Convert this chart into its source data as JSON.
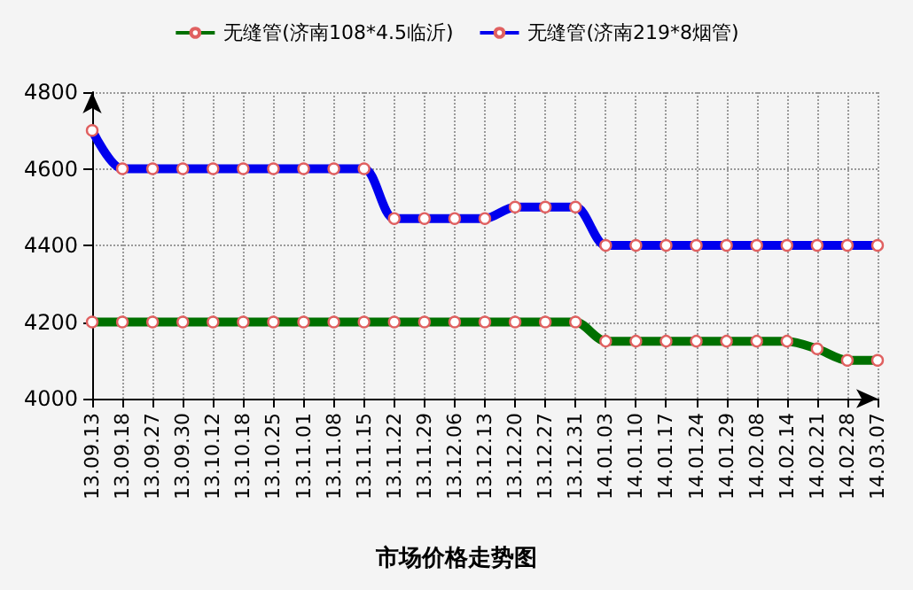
{
  "chart_data": {
    "type": "line",
    "title": "市场价格走势图",
    "categories": [
      "13.09.13",
      "13.09.18",
      "13.09.27",
      "13.09.30",
      "13.10.12",
      "13.10.18",
      "13.10.25",
      "13.11.01",
      "13.11.08",
      "13.11.15",
      "13.11.22",
      "13.11.29",
      "13.12.06",
      "13.12.13",
      "13.12.20",
      "13.12.27",
      "13.12.31",
      "14.01.03",
      "14.01.10",
      "14.01.17",
      "14.01.24",
      "14.01.29",
      "14.02.08",
      "14.02.14",
      "14.02.21",
      "14.02.28",
      "14.03.07"
    ],
    "series": [
      {
        "name": "无缝管(济南108*4.5临沂)",
        "color": "#007000",
        "values": [
          4200,
          4200,
          4200,
          4200,
          4200,
          4200,
          4200,
          4200,
          4200,
          4200,
          4200,
          4200,
          4200,
          4200,
          4200,
          4200,
          4200,
          4150,
          4150,
          4150,
          4150,
          4150,
          4150,
          4150,
          4130,
          4100,
          4100
        ]
      },
      {
        "name": "无缝管(济南219*8烟管)",
        "color": "#0000ee",
        "values": [
          4700,
          4600,
          4600,
          4600,
          4600,
          4600,
          4600,
          4600,
          4600,
          4600,
          4470,
          4470,
          4470,
          4470,
          4500,
          4500,
          4500,
          4400,
          4400,
          4400,
          4400,
          4400,
          4400,
          4400,
          4400,
          4400,
          4400
        ]
      }
    ],
    "ylim": [
      4000,
      4800
    ],
    "yticks": [
      4000,
      4200,
      4400,
      4600,
      4800
    ],
    "grid": true,
    "legend": "top",
    "marker": "circle",
    "line_style": "solid"
  }
}
